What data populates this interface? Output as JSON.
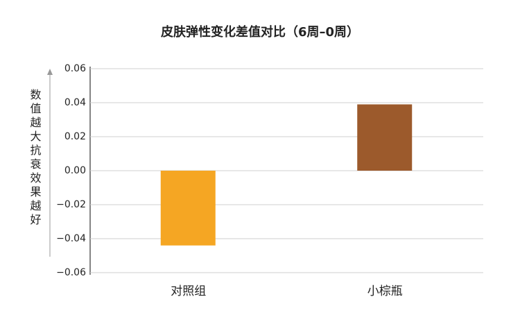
{
  "chart_data": {
    "type": "bar",
    "title": "皮肤弹性变化差值对比（6周–0周）",
    "y_label": "数值越大抗衰效果越好",
    "categories": [
      "对照组",
      "小棕瓶"
    ],
    "values": [
      -0.044,
      0.039
    ],
    "colors": [
      "#f5a623",
      "#9c5a2c"
    ],
    "ylim": [
      -0.06,
      0.06
    ],
    "yticks": [
      {
        "value": -0.06,
        "label": "−0.06"
      },
      {
        "value": -0.04,
        "label": "−0.04"
      },
      {
        "value": -0.02,
        "label": "−0.02"
      },
      {
        "value": 0,
        "label": "0.00"
      },
      0.02,
      0.04,
      0.06
    ],
    "grid": true
  }
}
